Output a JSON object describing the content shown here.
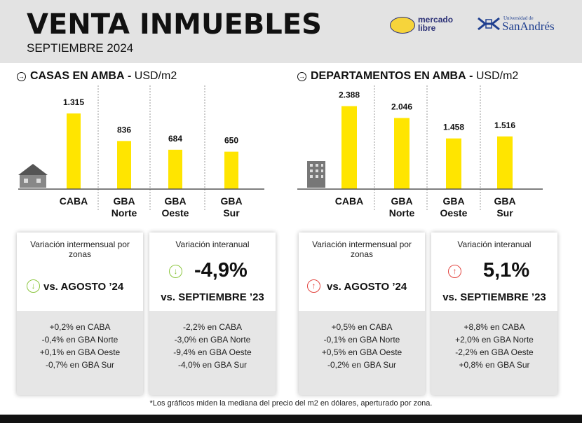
{
  "header": {
    "title": "VENTA INMUEBLES",
    "subtitle": "SEPTIEMBRE 2024",
    "logo_ml": "mercado libre",
    "logo_usa_small": "Universidad de",
    "logo_usa_big": "SanAndrés"
  },
  "colors": {
    "bar": "#ffe500",
    "up": "#e2443f",
    "down": "#8cc63f",
    "header_bg": "#e3e3e3"
  },
  "sections": [
    {
      "title": "CASAS EN AMBA",
      "unit": "USD/m2",
      "icon": "house-icon"
    },
    {
      "title": "DEPARTAMENTOS EN AMBA",
      "unit": "USD/m2",
      "icon": "building-icon"
    }
  ],
  "chart_data": [
    {
      "type": "bar",
      "title": "CASAS EN AMBA - USD/m2",
      "categories": [
        "CABA",
        "GBA Norte",
        "GBA Oeste",
        "GBA Sur"
      ],
      "values": [
        1315,
        836,
        684,
        650
      ],
      "labels": [
        "1.315",
        "836",
        "684",
        "650"
      ]
    },
    {
      "type": "bar",
      "title": "DEPARTAMENTOS EN AMBA - USD/m2",
      "categories": [
        "CABA",
        "GBA Norte",
        "GBA Oeste",
        "GBA Sur"
      ],
      "values": [
        2388,
        2046,
        1458,
        1516
      ],
      "labels": [
        "2.388",
        "2.046",
        "1.458",
        "1.516"
      ]
    }
  ],
  "cards": [
    {
      "label": "Variación intermensual por zonas",
      "headline": "vs. AGOSTO ’24",
      "big": "",
      "direction": "down",
      "items": [
        "+0,2% en CABA",
        "-0,4% en GBA Norte",
        "+0,1% en GBA Oeste",
        "-0,7% en GBA Sur"
      ]
    },
    {
      "label": "Variación interanual",
      "headline": "vs. SEPTIEMBRE ’23",
      "big": "-4,9%",
      "direction": "down",
      "items": [
        "-2,2% en CABA",
        "-3,0% en GBA Norte",
        "-9,4% en GBA Oeste",
        "-4,0% en GBA Sur"
      ]
    },
    {
      "label": "Variación intermensual por zonas",
      "headline": "vs. AGOSTO ’24",
      "big": "",
      "direction": "up",
      "items": [
        "+0,5% en CABA",
        "-0,1% en GBA Norte",
        "+0,5% en GBA Oeste",
        "-0,2% en GBA Sur"
      ]
    },
    {
      "label": "Variación interanual",
      "headline": "vs. SEPTIEMBRE ’23",
      "big": "5,1%",
      "direction": "up",
      "items": [
        "+8,8% en CABA",
        "+2,0% en GBA Norte",
        "-2,2% en GBA Oeste",
        "+0,8% en GBA Sur"
      ]
    }
  ],
  "footnote": "*Los gráficos miden  la mediana del precio del m2 en dólares, aperturado por zona."
}
